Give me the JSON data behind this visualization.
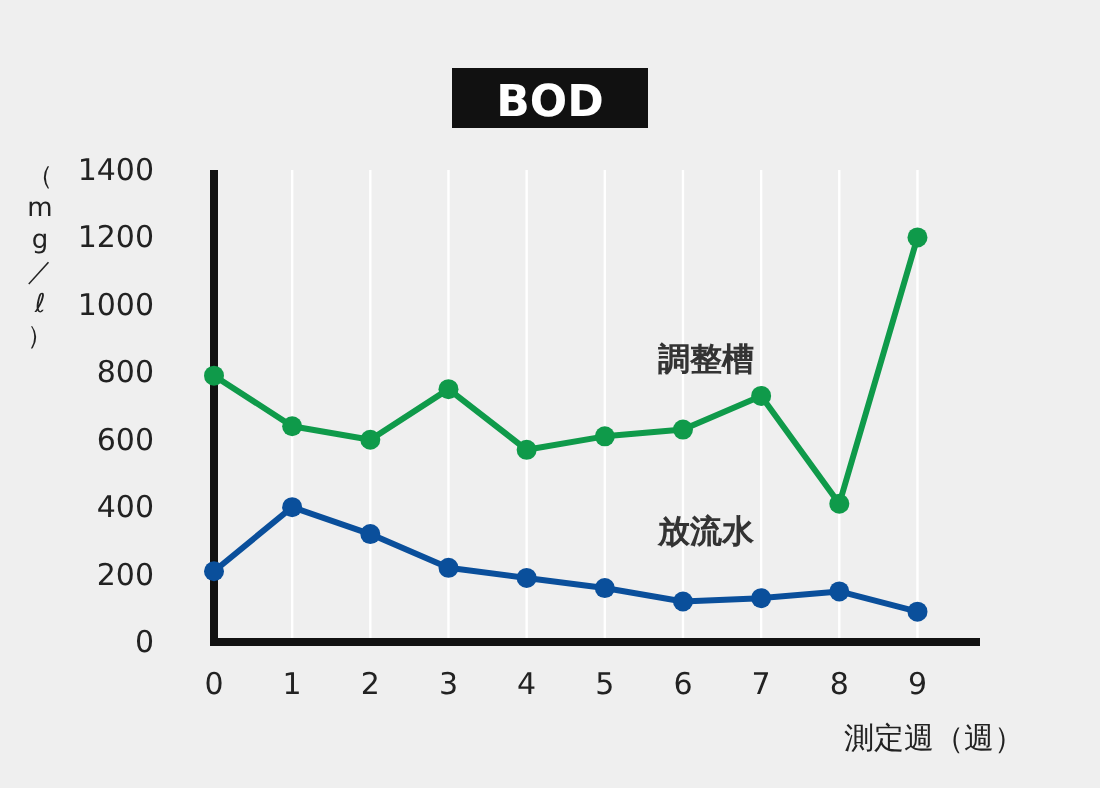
{
  "chart_data": {
    "type": "line",
    "title": "BOD",
    "xlabel": "測定週（週）",
    "ylabel": "（mg／ℓ）",
    "x": [
      0,
      1,
      2,
      3,
      4,
      5,
      6,
      7,
      8,
      9
    ],
    "series": [
      {
        "name": "調整槽",
        "color": "#0f9a4a",
        "values": [
          790,
          640,
          600,
          750,
          570,
          610,
          630,
          730,
          410,
          1200
        ]
      },
      {
        "name": "放流水",
        "color": "#0a4f9b",
        "values": [
          210,
          400,
          320,
          220,
          190,
          160,
          120,
          130,
          150,
          90
        ]
      }
    ],
    "xlim": [
      0,
      9.8
    ],
    "ylim": [
      0,
      1400
    ],
    "xticks": [
      0,
      1,
      2,
      3,
      4,
      5,
      6,
      7,
      8,
      9
    ],
    "yticks": [
      0,
      200,
      400,
      600,
      800,
      1000,
      1200,
      1400
    ],
    "grid": "x",
    "legend": false,
    "marker": "circle",
    "line_style": "solid"
  }
}
